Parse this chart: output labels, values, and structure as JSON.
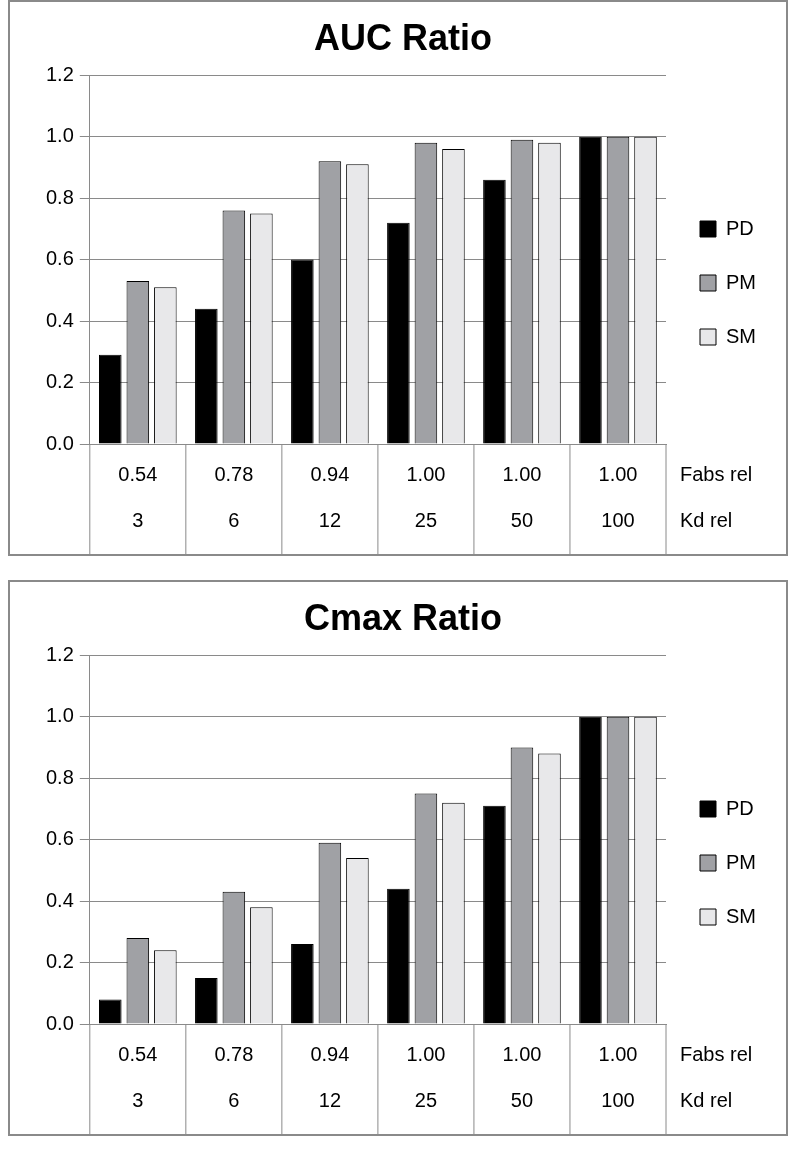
{
  "chart_data": [
    {
      "type": "bar",
      "title": "AUC Ratio",
      "categories": [
        "0.54\n3",
        "0.78\n6",
        "0.94\n12",
        "1.00\n25",
        "1.00\n50",
        "1.00\n100"
      ],
      "series": [
        {
          "name": "PD",
          "color": "#000000",
          "values": [
            0.29,
            0.44,
            0.6,
            0.72,
            0.86,
            1.0
          ]
        },
        {
          "name": "PM",
          "color": "#a0a1a5",
          "values": [
            0.53,
            0.76,
            0.92,
            0.98,
            0.99,
            1.0
          ]
        },
        {
          "name": "SM",
          "color": "#e8e8ea",
          "values": [
            0.51,
            0.75,
            0.91,
            0.96,
            0.98,
            1.0
          ]
        }
      ],
      "ylim": [
        0,
        1.2
      ],
      "yticks": [
        {
          "value": 0,
          "label": "0.0"
        },
        {
          "value": 0.2,
          "label": "0.2"
        },
        {
          "value": 0.4,
          "label": "0.4"
        },
        {
          "value": 0.6,
          "label": "0.6"
        },
        {
          "value": 0.8,
          "label": "0.8"
        },
        {
          "value": 1.0,
          "label": "1.0"
        },
        {
          "value": 1.2,
          "label": "1.2"
        }
      ],
      "grid": "y",
      "legend": "right",
      "annotations": [
        "Fabs rel",
        "Kd rel"
      ]
    },
    {
      "type": "bar",
      "title": "Cmax Ratio",
      "categories": [
        "0.54\n3",
        "0.78\n6",
        "0.94\n12",
        "1.00\n25",
        "1.00\n50",
        "1.00\n100"
      ],
      "series": [
        {
          "name": "PD",
          "color": "#000000",
          "values": [
            0.08,
            0.15,
            0.26,
            0.44,
            0.71,
            1.0
          ]
        },
        {
          "name": "PM",
          "color": "#a0a1a5",
          "values": [
            0.28,
            0.43,
            0.59,
            0.75,
            0.9,
            1.0
          ]
        },
        {
          "name": "SM",
          "color": "#e8e8ea",
          "values": [
            0.24,
            0.38,
            0.54,
            0.72,
            0.88,
            1.0
          ]
        }
      ],
      "ylim": [
        0,
        1.2
      ],
      "yticks": [
        {
          "value": 0,
          "label": "0.0"
        },
        {
          "value": 0.2,
          "label": "0.2"
        },
        {
          "value": 0.4,
          "label": "0.4"
        },
        {
          "value": 0.6,
          "label": "0.6"
        },
        {
          "value": 0.8,
          "label": "0.8"
        },
        {
          "value": 1.0,
          "label": "1.0"
        },
        {
          "value": 1.2,
          "label": "1.2"
        }
      ],
      "grid": "y",
      "legend": "right",
      "annotations": [
        "Fabs rel",
        "Kd rel"
      ]
    }
  ]
}
